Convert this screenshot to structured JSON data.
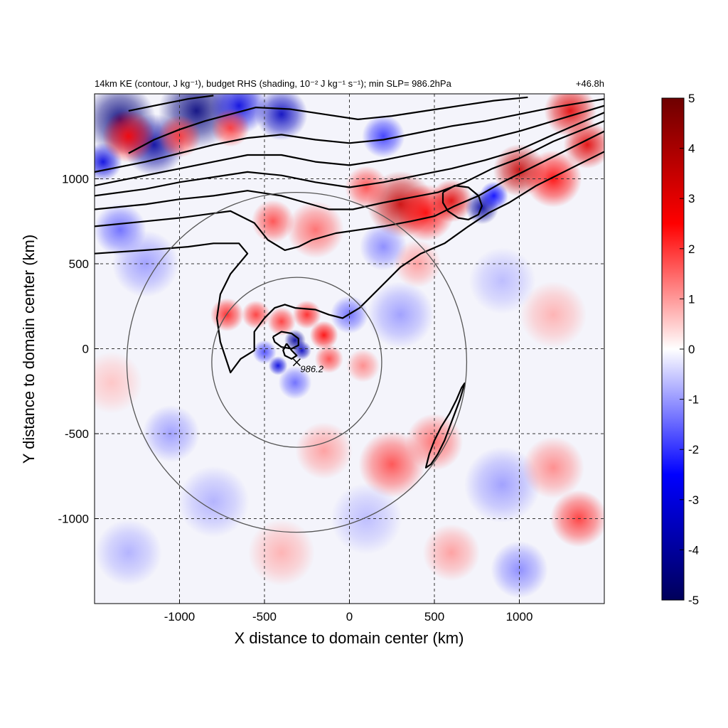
{
  "chart_data": {
    "type": "heatmap",
    "title": "14km KE (contour, J kg⁻¹), budget RHS (shading, 10⁻² J kg⁻¹ s⁻¹); min SLP= 986.2hPa",
    "time_label": "+46.8h",
    "xlabel": "X distance to domain center (km)",
    "ylabel": "Y distance to domain center (km)",
    "xlim": [
      -1500,
      1500
    ],
    "ylim": [
      -1500,
      1500
    ],
    "xticks": [
      -1000,
      -500,
      0,
      500,
      1000
    ],
    "yticks": [
      -1000,
      -500,
      0,
      500,
      1000
    ],
    "xtick_labels": [
      "-1000",
      "-500",
      "0",
      "500",
      "1000"
    ],
    "ytick_labels": [
      "-1000",
      "-500",
      "0",
      "500",
      "1000"
    ],
    "grid": true,
    "colorbar": {
      "min": -5,
      "max": 5,
      "ticks": [
        5,
        4,
        3,
        2,
        1,
        0,
        -1,
        -2,
        -3,
        -4,
        -5
      ],
      "tick_labels": [
        "5",
        "4",
        "3",
        "2",
        "1",
        "0",
        "-1",
        "-2",
        "-3",
        "-4",
        "-5"
      ],
      "colors": [
        "#00005a",
        "#0000ff",
        "#ffffff",
        "#ff0000",
        "#6e0000"
      ]
    },
    "storm_center": {
      "x": -310,
      "y": -80,
      "label": "986.2"
    },
    "range_circles": [
      {
        "center_x": -310,
        "center_y": -80,
        "radius": 500
      },
      {
        "center_x": -310,
        "center_y": -80,
        "radius": 1000
      }
    ],
    "ke_contours": [
      [
        [
          -1500,
          560
        ],
        [
          -1200,
          580
        ],
        [
          -950,
          600
        ],
        [
          -800,
          620
        ],
        [
          -650,
          620
        ],
        [
          -600,
          560
        ],
        [
          -700,
          440
        ],
        [
          -760,
          320
        ],
        [
          -780,
          180
        ],
        [
          -760,
          40
        ],
        [
          -700,
          -140
        ],
        [
          -640,
          -60
        ],
        [
          -560,
          -10
        ],
        [
          -560,
          100
        ],
        [
          -500,
          180
        ],
        [
          -440,
          240
        ],
        [
          -380,
          260
        ],
        [
          -320,
          240
        ],
        [
          -200,
          230
        ],
        [
          -120,
          200
        ],
        [
          -40,
          180
        ],
        [
          60,
          240
        ],
        [
          180,
          360
        ],
        [
          300,
          480
        ],
        [
          420,
          560
        ],
        [
          560,
          620
        ],
        [
          700,
          720
        ],
        [
          820,
          800
        ],
        [
          940,
          860
        ],
        [
          1100,
          960
        ],
        [
          1300,
          1060
        ],
        [
          1500,
          1160
        ]
      ],
      [
        [
          -1500,
          720
        ],
        [
          -1200,
          750
        ],
        [
          -1000,
          770
        ],
        [
          -850,
          790
        ],
        [
          -700,
          810
        ],
        [
          -560,
          740
        ],
        [
          -480,
          640
        ],
        [
          -380,
          580
        ],
        [
          -300,
          600
        ],
        [
          -220,
          640
        ],
        [
          -80,
          680
        ],
        [
          60,
          700
        ],
        [
          200,
          720
        ],
        [
          360,
          750
        ],
        [
          500,
          780
        ],
        [
          620,
          840
        ],
        [
          760,
          900
        ],
        [
          900,
          980
        ],
        [
          1100,
          1080
        ],
        [
          1300,
          1180
        ],
        [
          1500,
          1280
        ]
      ],
      [
        [
          -1500,
          820
        ],
        [
          -1200,
          850
        ],
        [
          -1000,
          880
        ],
        [
          -800,
          900
        ],
        [
          -600,
          930
        ],
        [
          -400,
          900
        ],
        [
          -260,
          860
        ],
        [
          -120,
          820
        ],
        [
          20,
          820
        ],
        [
          200,
          860
        ],
        [
          360,
          890
        ],
        [
          520,
          920
        ],
        [
          680,
          980
        ],
        [
          840,
          1060
        ],
        [
          1000,
          1120
        ],
        [
          1200,
          1220
        ],
        [
          1500,
          1340
        ]
      ],
      [
        [
          -1500,
          900
        ],
        [
          -1200,
          940
        ],
        [
          -1000,
          980
        ],
        [
          -800,
          1010
        ],
        [
          -600,
          1040
        ],
        [
          -400,
          1020
        ],
        [
          -200,
          980
        ],
        [
          0,
          950
        ],
        [
          200,
          980
        ],
        [
          400,
          1020
        ],
        [
          600,
          1060
        ],
        [
          800,
          1110
        ],
        [
          1000,
          1170
        ],
        [
          1200,
          1260
        ],
        [
          1500,
          1390
        ]
      ],
      [
        [
          -1500,
          960
        ],
        [
          -1200,
          1020
        ],
        [
          -1000,
          1060
        ],
        [
          -800,
          1100
        ],
        [
          -600,
          1140
        ],
        [
          -400,
          1140
        ],
        [
          -200,
          1100
        ],
        [
          0,
          1080
        ],
        [
          200,
          1110
        ],
        [
          400,
          1150
        ],
        [
          600,
          1190
        ],
        [
          800,
          1230
        ],
        [
          1000,
          1280
        ],
        [
          1200,
          1340
        ],
        [
          1500,
          1430
        ]
      ],
      [
        [
          -1500,
          1040
        ],
        [
          -1200,
          1100
        ],
        [
          -1000,
          1150
        ],
        [
          -800,
          1200
        ],
        [
          -600,
          1240
        ],
        [
          -400,
          1260
        ],
        [
          -200,
          1230
        ],
        [
          0,
          1210
        ],
        [
          200,
          1230
        ],
        [
          400,
          1270
        ],
        [
          600,
          1310
        ],
        [
          800,
          1340
        ],
        [
          1000,
          1380
        ],
        [
          1200,
          1420
        ],
        [
          1500,
          1470
        ]
      ],
      [
        [
          -1300,
          1150
        ],
        [
          -1150,
          1230
        ],
        [
          -1000,
          1290
        ],
        [
          -850,
          1340
        ],
        [
          -700,
          1380
        ],
        [
          -550,
          1420
        ],
        [
          -350,
          1410
        ],
        [
          -150,
          1380
        ],
        [
          50,
          1350
        ],
        [
          250,
          1370
        ],
        [
          450,
          1400
        ],
        [
          650,
          1430
        ],
        [
          850,
          1460
        ],
        [
          1050,
          1480
        ]
      ],
      [
        [
          -1300,
          1400
        ],
        [
          -1100,
          1440
        ],
        [
          -950,
          1470
        ],
        [
          -800,
          1490
        ]
      ],
      [
        [
          -450,
          70
        ],
        [
          -400,
          100
        ],
        [
          -340,
          90
        ],
        [
          -300,
          60
        ],
        [
          -300,
          20
        ],
        [
          -340,
          0
        ],
        [
          -400,
          10
        ],
        [
          -440,
          40
        ],
        [
          -450,
          70
        ]
      ],
      [
        [
          -370,
          30
        ],
        [
          -340,
          -10
        ],
        [
          -310,
          -40
        ],
        [
          -340,
          -60
        ],
        [
          -380,
          -40
        ],
        [
          -390,
          -10
        ],
        [
          -370,
          30
        ]
      ],
      [
        [
          550,
          920
        ],
        [
          620,
          960
        ],
        [
          700,
          950
        ],
        [
          760,
          900
        ],
        [
          780,
          840
        ],
        [
          760,
          790
        ],
        [
          700,
          760
        ],
        [
          640,
          770
        ],
        [
          580,
          810
        ],
        [
          550,
          860
        ],
        [
          550,
          920
        ]
      ],
      [
        [
          680,
          -200
        ],
        [
          650,
          -300
        ],
        [
          620,
          -380
        ],
        [
          590,
          -460
        ],
        [
          560,
          -540
        ],
        [
          520,
          -620
        ],
        [
          480,
          -680
        ],
        [
          450,
          -700
        ],
        [
          470,
          -620
        ],
        [
          500,
          -540
        ],
        [
          540,
          -460
        ],
        [
          590,
          -380
        ],
        [
          630,
          -300
        ],
        [
          660,
          -230
        ],
        [
          680,
          -200
        ]
      ]
    ],
    "blobs": [
      {
        "x": -1350,
        "y": 1350,
        "r": 150,
        "v": -4.5
      },
      {
        "x": -1150,
        "y": 1200,
        "r": 130,
        "v": -4
      },
      {
        "x": -900,
        "y": 1400,
        "r": 160,
        "v": -4.5
      },
      {
        "x": -650,
        "y": 1430,
        "r": 120,
        "v": -3
      },
      {
        "x": -400,
        "y": 1380,
        "r": 110,
        "v": -3.5
      },
      {
        "x": -1450,
        "y": 1100,
        "r": 80,
        "v": -3
      },
      {
        "x": -1300,
        "y": 1250,
        "r": 110,
        "v": 2.5
      },
      {
        "x": -1000,
        "y": 1250,
        "r": 90,
        "v": 2
      },
      {
        "x": -700,
        "y": 1300,
        "r": 80,
        "v": 2
      },
      {
        "x": 300,
        "y": 850,
        "r": 140,
        "v": 3.5
      },
      {
        "x": 450,
        "y": 800,
        "r": 120,
        "v": 2.5
      },
      {
        "x": 600,
        "y": 870,
        "r": 90,
        "v": 3
      },
      {
        "x": 780,
        "y": 830,
        "r": 70,
        "v": -4
      },
      {
        "x": 850,
        "y": 900,
        "r": 60,
        "v": -2.5
      },
      {
        "x": 1000,
        "y": 1050,
        "r": 110,
        "v": 3.5
      },
      {
        "x": 1200,
        "y": 1000,
        "r": 120,
        "v": 2.5
      },
      {
        "x": 1400,
        "y": 1200,
        "r": 100,
        "v": 3
      },
      {
        "x": 1300,
        "y": 1400,
        "r": 110,
        "v": 3
      },
      {
        "x": 200,
        "y": 1250,
        "r": 90,
        "v": -2
      },
      {
        "x": 100,
        "y": 950,
        "r": 90,
        "v": 1.8
      },
      {
        "x": -200,
        "y": 700,
        "r": 120,
        "v": 1.5
      },
      {
        "x": -450,
        "y": 750,
        "r": 90,
        "v": 1.8
      },
      {
        "x": -1350,
        "y": 700,
        "r": 110,
        "v": -1.5
      },
      {
        "x": -1200,
        "y": 500,
        "r": 140,
        "v": -1
      },
      {
        "x": 200,
        "y": 600,
        "r": 100,
        "v": -1.2
      },
      {
        "x": 400,
        "y": 500,
        "r": 100,
        "v": 1
      },
      {
        "x": -320,
        "y": 50,
        "r": 45,
        "v": -4
      },
      {
        "x": -280,
        "y": -10,
        "r": 40,
        "v": -3.5
      },
      {
        "x": -420,
        "y": -100,
        "r": 40,
        "v": -3
      },
      {
        "x": -150,
        "y": 80,
        "r": 60,
        "v": 2.5
      },
      {
        "x": -400,
        "y": 160,
        "r": 60,
        "v": 2
      },
      {
        "x": -250,
        "y": 200,
        "r": 60,
        "v": 2.2
      },
      {
        "x": -120,
        "y": -60,
        "r": 60,
        "v": 1.8
      },
      {
        "x": -500,
        "y": -20,
        "r": 50,
        "v": -1.8
      },
      {
        "x": -550,
        "y": 200,
        "r": 60,
        "v": 2
      },
      {
        "x": -720,
        "y": 200,
        "r": 70,
        "v": 2.2
      },
      {
        "x": -320,
        "y": -200,
        "r": 70,
        "v": -1.5
      },
      {
        "x": 0,
        "y": 200,
        "r": 80,
        "v": -1.5
      },
      {
        "x": 80,
        "y": -100,
        "r": 70,
        "v": 1.2
      },
      {
        "x": 250,
        "y": -680,
        "r": 140,
        "v": 1.8
      },
      {
        "x": 500,
        "y": -550,
        "r": 120,
        "v": 1.5
      },
      {
        "x": -150,
        "y": -600,
        "r": 120,
        "v": 1
      },
      {
        "x": -1050,
        "y": -500,
        "r": 120,
        "v": -1
      },
      {
        "x": -800,
        "y": -900,
        "r": 150,
        "v": -0.8
      },
      {
        "x": 900,
        "y": -800,
        "r": 160,
        "v": -1
      },
      {
        "x": 1350,
        "y": -1000,
        "r": 120,
        "v": 2
      },
      {
        "x": 1200,
        "y": -700,
        "r": 130,
        "v": 1.2
      },
      {
        "x": 1000,
        "y": -1300,
        "r": 120,
        "v": -1.2
      },
      {
        "x": 600,
        "y": -1200,
        "r": 120,
        "v": 1
      },
      {
        "x": -400,
        "y": -1200,
        "r": 140,
        "v": 0.8
      },
      {
        "x": -1300,
        "y": -1200,
        "r": 140,
        "v": -0.8
      },
      {
        "x": 1200,
        "y": 200,
        "r": 140,
        "v": 0.8
      },
      {
        "x": 900,
        "y": 400,
        "r": 140,
        "v": -0.7
      },
      {
        "x": -1400,
        "y": -200,
        "r": 130,
        "v": 0.6
      },
      {
        "x": 300,
        "y": 200,
        "r": 140,
        "v": -1
      },
      {
        "x": 100,
        "y": -1000,
        "r": 150,
        "v": -0.7
      }
    ]
  }
}
